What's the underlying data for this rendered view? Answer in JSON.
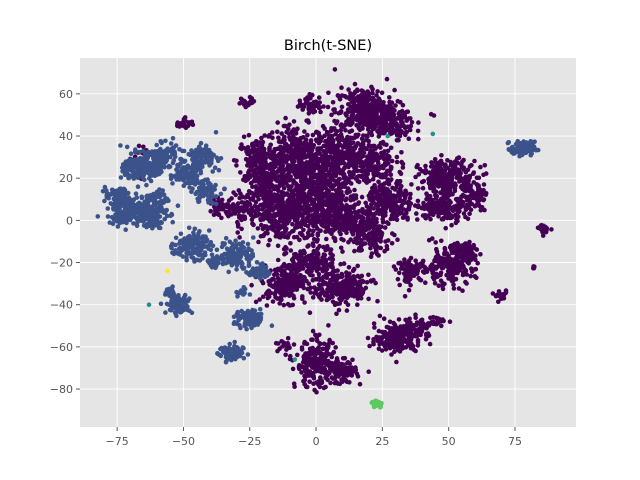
{
  "chart_data": {
    "type": "scatter",
    "title": "Birch(t-SNE)",
    "xlabel": "",
    "ylabel": "",
    "xlim": [
      -89,
      98
    ],
    "ylim": [
      -98,
      77
    ],
    "grid": true,
    "legend": "none",
    "xticks": [
      -75,
      -50,
      -25,
      0,
      25,
      50,
      75
    ],
    "yticks": [
      -80,
      -60,
      -40,
      -20,
      0,
      20,
      40,
      60
    ],
    "background_color": "#e5e5e5",
    "grid_color": "#ffffff",
    "colors": {
      "cluster_0": "#440154",
      "cluster_1": "#3b528b",
      "cluster_2": "#21918c",
      "cluster_3": "#5ec962",
      "cluster_4": "#fde725"
    },
    "clusters": [
      {
        "cluster": 0,
        "blobs": [
          [
            -8,
            32,
            10,
            12,
            300
          ],
          [
            8,
            32,
            9,
            10,
            220
          ],
          [
            -22,
            28,
            7,
            10,
            150
          ],
          [
            0,
            18,
            12,
            12,
            360
          ],
          [
            -18,
            14,
            8,
            10,
            180
          ],
          [
            -12,
            2,
            12,
            12,
            320
          ],
          [
            8,
            2,
            12,
            12,
            340
          ],
          [
            -28,
            6,
            4,
            6,
            50
          ],
          [
            18,
            52,
            10,
            10,
            300
          ],
          [
            28,
            46,
            8,
            8,
            150
          ],
          [
            -2,
            55,
            4,
            4,
            50
          ],
          [
            -26,
            56,
            3,
            2,
            22
          ],
          [
            20,
            28,
            9,
            9,
            200
          ],
          [
            28,
            8,
            8,
            10,
            230
          ],
          [
            20,
            -8,
            7,
            8,
            120
          ],
          [
            -12,
            -30,
            8,
            8,
            180
          ],
          [
            10,
            -32,
            10,
            8,
            240
          ],
          [
            -2,
            -20,
            8,
            6,
            130
          ],
          [
            50,
            20,
            10,
            8,
            250
          ],
          [
            48,
            6,
            8,
            6,
            160
          ],
          [
            60,
            12,
            4,
            6,
            55
          ],
          [
            50,
            -22,
            9,
            8,
            200
          ],
          [
            36,
            -24,
            5,
            5,
            90
          ],
          [
            56,
            -14,
            5,
            4,
            70
          ],
          [
            30,
            -56,
            7,
            6,
            180
          ],
          [
            38,
            -52,
            5,
            5,
            80
          ],
          [
            46,
            -48,
            3,
            2,
            25
          ],
          [
            0,
            -68,
            7,
            10,
            240
          ],
          [
            10,
            -72,
            5,
            5,
            80
          ],
          [
            -36,
            6,
            4,
            4,
            55
          ],
          [
            -65,
            28,
            3,
            8,
            45
          ],
          [
            -50,
            46,
            3,
            2,
            30
          ],
          [
            -8,
            -28,
            4,
            4,
            50
          ],
          [
            70,
            -36,
            2,
            2,
            18
          ],
          [
            86,
            -4,
            2,
            2,
            18
          ],
          [
            82,
            -22,
            1,
            1,
            4
          ],
          [
            44,
            49,
            1,
            1,
            2
          ],
          [
            -12,
            -60,
            3,
            3,
            15
          ]
        ]
      },
      {
        "cluster": 1,
        "blobs": [
          [
            -72,
            5,
            6,
            6,
            160
          ],
          [
            -63,
            3,
            6,
            6,
            150
          ],
          [
            -66,
            25,
            6,
            6,
            170
          ],
          [
            -58,
            30,
            5,
            6,
            110
          ],
          [
            -50,
            22,
            5,
            5,
            90
          ],
          [
            -43,
            30,
            5,
            5,
            120
          ],
          [
            -42,
            14,
            5,
            5,
            80
          ],
          [
            -75,
            12,
            4,
            3,
            50
          ],
          [
            -47,
            -12,
            6,
            6,
            130
          ],
          [
            -30,
            -16,
            6,
            6,
            110
          ],
          [
            -22,
            -24,
            4,
            3,
            55
          ],
          [
            -38,
            -20,
            3,
            3,
            30
          ],
          [
            -52,
            -40,
            4,
            4,
            90
          ],
          [
            -55,
            -34,
            2,
            2,
            18
          ],
          [
            -25,
            -47,
            5,
            4,
            90
          ],
          [
            -32,
            -63,
            4,
            4,
            80
          ],
          [
            -28,
            -34,
            2,
            2,
            15
          ],
          [
            78,
            34,
            4,
            3,
            110
          ],
          [
            -60,
            10,
            4,
            4,
            60
          ]
        ]
      },
      {
        "cluster": 2,
        "blobs": [
          [
            44,
            41,
            0.3,
            0.3,
            1
          ],
          [
            27,
            40,
            0.3,
            0.3,
            1
          ],
          [
            -8,
            -66,
            0.3,
            0.3,
            1
          ],
          [
            -63,
            -40,
            0.3,
            0.3,
            1
          ]
        ]
      },
      {
        "cluster": 3,
        "blobs": [
          [
            23,
            -87,
            1.8,
            1.6,
            60
          ]
        ]
      },
      {
        "cluster": 4,
        "blobs": [
          [
            -56,
            -24,
            0.2,
            0.2,
            1
          ]
        ]
      }
    ]
  }
}
